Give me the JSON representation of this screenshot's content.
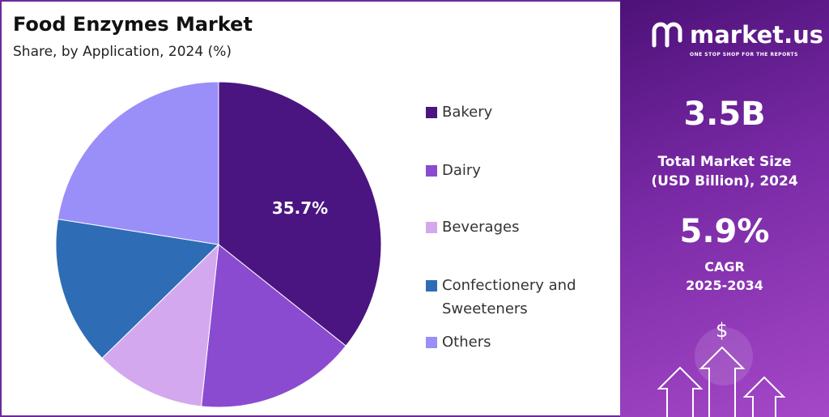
{
  "chart_data": {
    "type": "pie",
    "title": "Food Enzymes Market",
    "subtitle": "Share, by Application, 2024 (%)",
    "categories": [
      "Bakery",
      "Dairy",
      "Beverages",
      "Confectionery and Sweeteners",
      "Others"
    ],
    "values": [
      35.7,
      16,
      11,
      14.8,
      22.5
    ],
    "value_labels": [
      "35.7%",
      null,
      null,
      null,
      null
    ],
    "colors": [
      "#4a1580",
      "#8a4bd0",
      "#d4a8ee",
      "#2e6db5",
      "#9a8ef8"
    ]
  },
  "sidebar": {
    "brand": "market.us",
    "tagline": "ONE STOP SHOP FOR THE REPORTS",
    "market_size": "3.5B",
    "market_size_label": "Total Market Size (USD Billion), 2024",
    "cagr": "5.9%",
    "cagr_label": "CAGR",
    "cagr_period": "2025-2034",
    "icon_symbol": "$"
  }
}
